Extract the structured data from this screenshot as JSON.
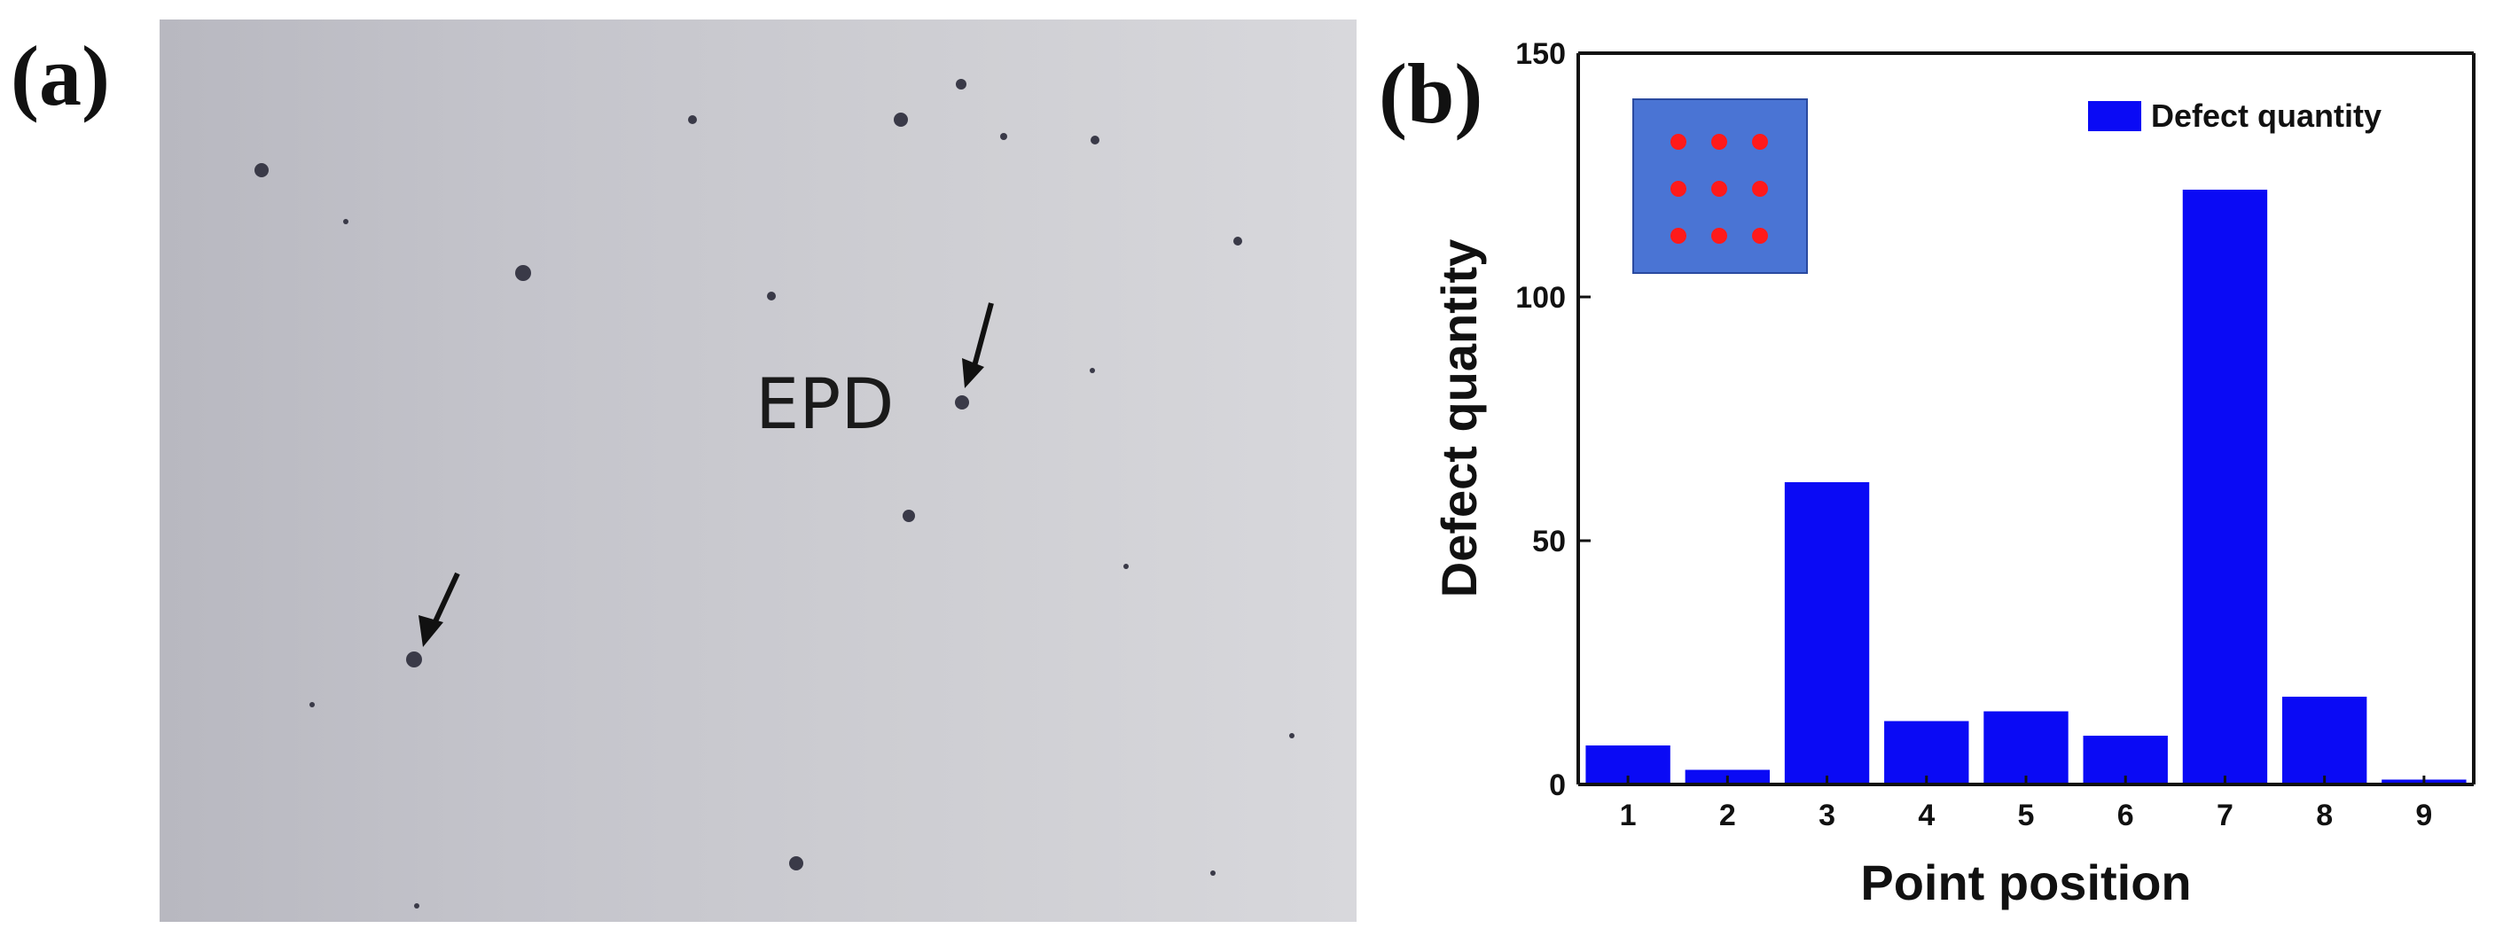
{
  "panels": {
    "a": {
      "label": "(a)",
      "annotation": "EPD"
    },
    "b": {
      "label": "(b)"
    }
  },
  "colors": {
    "bar": "#0a0af5",
    "inset_square": "#4a74d4",
    "inset_dot": "#ff1a1a"
  },
  "chart_data": {
    "type": "bar",
    "categories": [
      "1",
      "2",
      "3",
      "4",
      "5",
      "6",
      "7",
      "8",
      "9"
    ],
    "series": [
      {
        "name": "Defect quantity",
        "values": [
          8,
          3,
          62,
          13,
          15,
          10,
          122,
          18,
          1
        ]
      }
    ],
    "xlabel": "Point position",
    "ylabel": "Defect quantity",
    "ylim": [
      0,
      150
    ],
    "yticks": [
      0,
      50,
      100,
      150
    ],
    "legend": "top-right",
    "grid": false,
    "inset": "3x3 grid of measurement points"
  }
}
